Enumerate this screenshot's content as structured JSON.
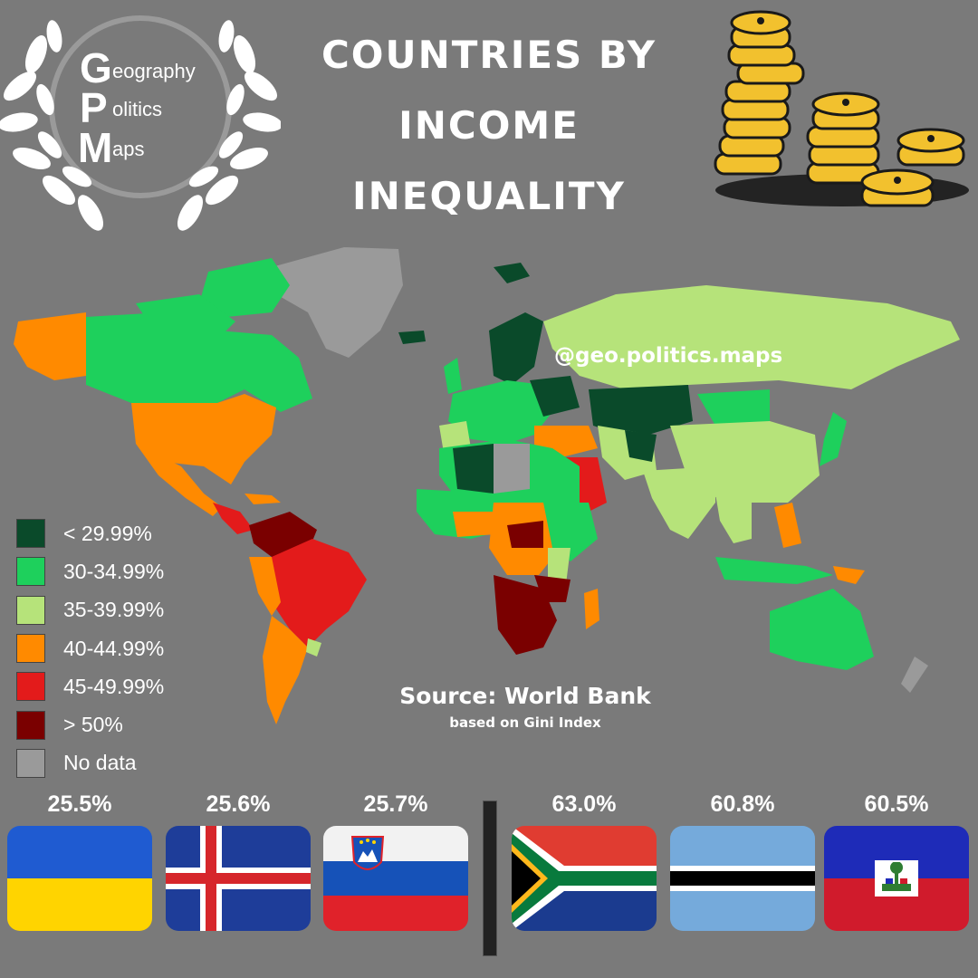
{
  "title": {
    "line1": "COUNTRIES BY",
    "line2": "INCOME",
    "line3": "INEQUALITY"
  },
  "logo": {
    "g": "G",
    "p": "P",
    "m": "M",
    "geo": "eography",
    "pol": "olitics",
    "maps": "aps"
  },
  "watermark": "@geo.politics.maps",
  "source": {
    "main": "Source: World Bank",
    "sub": "based on Gini Index"
  },
  "legend": [
    {
      "label": "< 29.99%",
      "color": "#0a4a2a"
    },
    {
      "label": "30-34.99%",
      "color": "#1ed05c"
    },
    {
      "label": "35-39.99%",
      "color": "#b6e37a"
    },
    {
      "label": "40-44.99%",
      "color": "#ff8a00"
    },
    {
      "label": "45-49.99%",
      "color": "#e31b1b"
    },
    {
      "label": "> 50%",
      "color": "#7a0000"
    },
    {
      "label": "No data",
      "color": "#9a9a9a"
    }
  ],
  "lowest": [
    {
      "value": "25.5%",
      "country": "Ukraine"
    },
    {
      "value": "25.6%",
      "country": "Iceland"
    },
    {
      "value": "25.7%",
      "country": "Slovenia"
    }
  ],
  "highest": [
    {
      "value": "63.0%",
      "country": "South Africa"
    },
    {
      "value": "60.8%",
      "country": "Botswana"
    },
    {
      "value": "60.5%",
      "country": "Haiti"
    }
  ]
}
